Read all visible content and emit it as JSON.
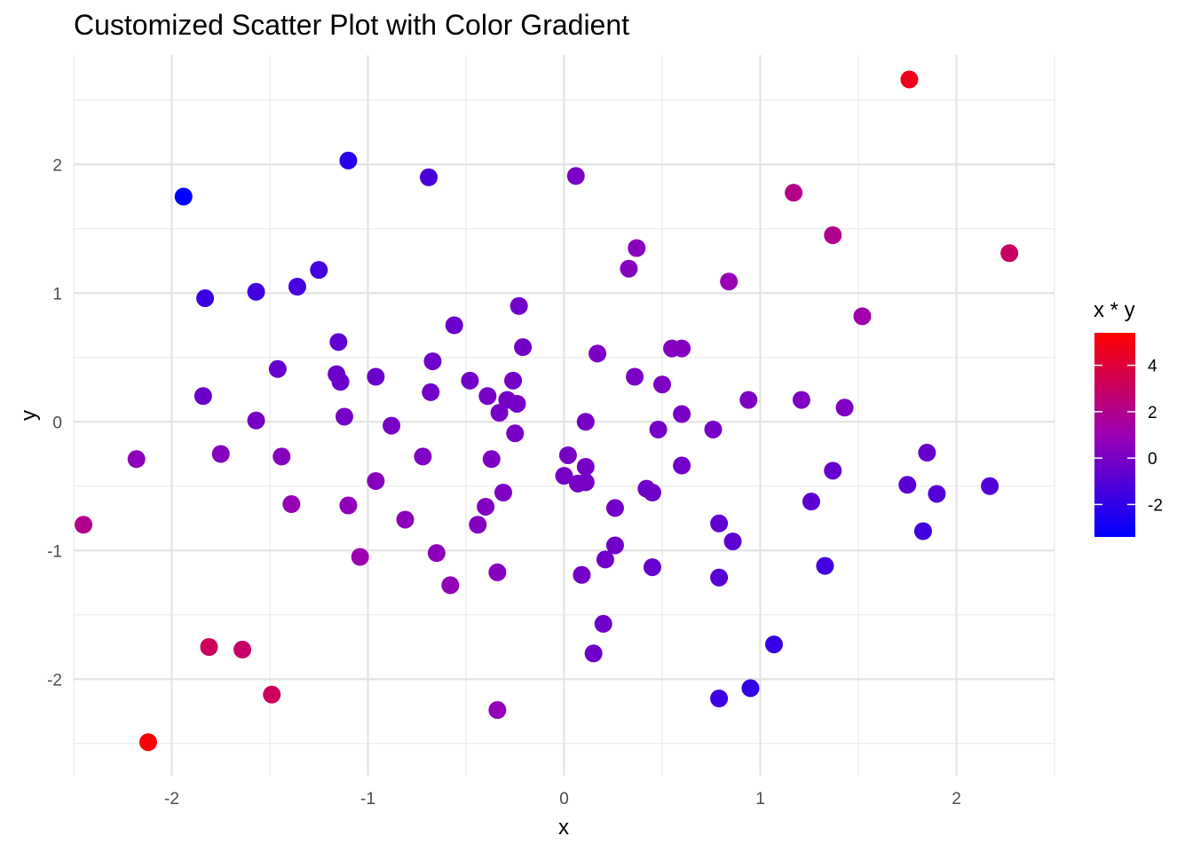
{
  "chart_data": {
    "type": "scatter",
    "title": "Customized Scatter Plot with Color Gradient",
    "xlabel": "x",
    "ylabel": "y",
    "xlim": [
      -2.5,
      2.5
    ],
    "ylim": [
      -2.75,
      2.85
    ],
    "xticks": [
      -2,
      -1,
      0,
      1,
      2
    ],
    "yticks": [
      -2,
      -1,
      0,
      1,
      2
    ],
    "grid": true,
    "legend": {
      "title": "x * y",
      "position": "right",
      "type": "colorbar",
      "range": [
        -3.4,
        5.4
      ],
      "ticks": [
        -2,
        0,
        2,
        4
      ],
      "low_color": "#0000ff",
      "high_color": "#ff0000"
    },
    "color_variable": "x * y",
    "points": [
      [
        1.76,
        2.66
      ],
      [
        -1.1,
        2.03
      ],
      [
        -0.69,
        1.9
      ],
      [
        0.06,
        1.91
      ],
      [
        -1.94,
        1.75
      ],
      [
        1.17,
        1.78
      ],
      [
        1.37,
        1.45
      ],
      [
        2.27,
        1.31
      ],
      [
        0.37,
        1.35
      ],
      [
        0.33,
        1.19
      ],
      [
        0.84,
        1.09
      ],
      [
        -1.25,
        1.18
      ],
      [
        -1.36,
        1.05
      ],
      [
        -1.57,
        1.01
      ],
      [
        -1.83,
        0.96
      ],
      [
        -0.23,
        0.9
      ],
      [
        1.52,
        0.82
      ],
      [
        -0.56,
        0.75
      ],
      [
        -1.15,
        0.62
      ],
      [
        -0.21,
        0.58
      ],
      [
        0.55,
        0.57
      ],
      [
        0.6,
        0.57
      ],
      [
        0.17,
        0.53
      ],
      [
        -0.67,
        0.47
      ],
      [
        -1.46,
        0.41
      ],
      [
        -1.16,
        0.37
      ],
      [
        -0.96,
        0.35
      ],
      [
        0.36,
        0.35
      ],
      [
        -1.14,
        0.31
      ],
      [
        -0.48,
        0.32
      ],
      [
        -0.26,
        0.32
      ],
      [
        0.5,
        0.29
      ],
      [
        -0.68,
        0.23
      ],
      [
        -1.84,
        0.2
      ],
      [
        -0.39,
        0.2
      ],
      [
        -0.29,
        0.17
      ],
      [
        0.94,
        0.17
      ],
      [
        1.21,
        0.17
      ],
      [
        -0.24,
        0.14
      ],
      [
        1.43,
        0.11
      ],
      [
        -0.33,
        0.07
      ],
      [
        0.6,
        0.06
      ],
      [
        -1.12,
        0.04
      ],
      [
        -1.57,
        0.01
      ],
      [
        0.11,
        0.0
      ],
      [
        -0.88,
        -0.03
      ],
      [
        0.48,
        -0.06
      ],
      [
        0.76,
        -0.06
      ],
      [
        -0.25,
        -0.09
      ],
      [
        -1.75,
        -0.25
      ],
      [
        1.85,
        -0.24
      ],
      [
        -1.44,
        -0.27
      ],
      [
        -0.72,
        -0.27
      ],
      [
        0.02,
        -0.26
      ],
      [
        -2.18,
        -0.29
      ],
      [
        -0.37,
        -0.29
      ],
      [
        0.11,
        -0.35
      ],
      [
        0.6,
        -0.34
      ],
      [
        1.37,
        -0.38
      ],
      [
        0.0,
        -0.42
      ],
      [
        -0.96,
        -0.46
      ],
      [
        0.07,
        -0.48
      ],
      [
        0.11,
        -0.47
      ],
      [
        1.75,
        -0.49
      ],
      [
        2.17,
        -0.5
      ],
      [
        0.42,
        -0.52
      ],
      [
        0.45,
        -0.55
      ],
      [
        -0.31,
        -0.55
      ],
      [
        1.9,
        -0.56
      ],
      [
        1.26,
        -0.62
      ],
      [
        -1.39,
        -0.64
      ],
      [
        -1.1,
        -0.65
      ],
      [
        -0.4,
        -0.66
      ],
      [
        0.26,
        -0.67
      ],
      [
        -0.81,
        -0.76
      ],
      [
        0.79,
        -0.79
      ],
      [
        -0.44,
        -0.8
      ],
      [
        -2.45,
        -0.8
      ],
      [
        1.83,
        -0.85
      ],
      [
        0.86,
        -0.93
      ],
      [
        0.26,
        -0.96
      ],
      [
        -0.65,
        -1.02
      ],
      [
        -1.04,
        -1.05
      ],
      [
        0.21,
        -1.07
      ],
      [
        1.33,
        -1.12
      ],
      [
        0.45,
        -1.13
      ],
      [
        -0.34,
        -1.17
      ],
      [
        0.09,
        -1.19
      ],
      [
        0.79,
        -1.21
      ],
      [
        -0.58,
        -1.27
      ],
      [
        0.2,
        -1.57
      ],
      [
        1.07,
        -1.73
      ],
      [
        -1.81,
        -1.75
      ],
      [
        -1.64,
        -1.77
      ],
      [
        0.15,
        -1.8
      ],
      [
        0.95,
        -2.07
      ],
      [
        -1.49,
        -2.12
      ],
      [
        0.79,
        -2.15
      ],
      [
        -0.34,
        -2.24
      ],
      [
        -2.12,
        -2.49
      ]
    ]
  }
}
